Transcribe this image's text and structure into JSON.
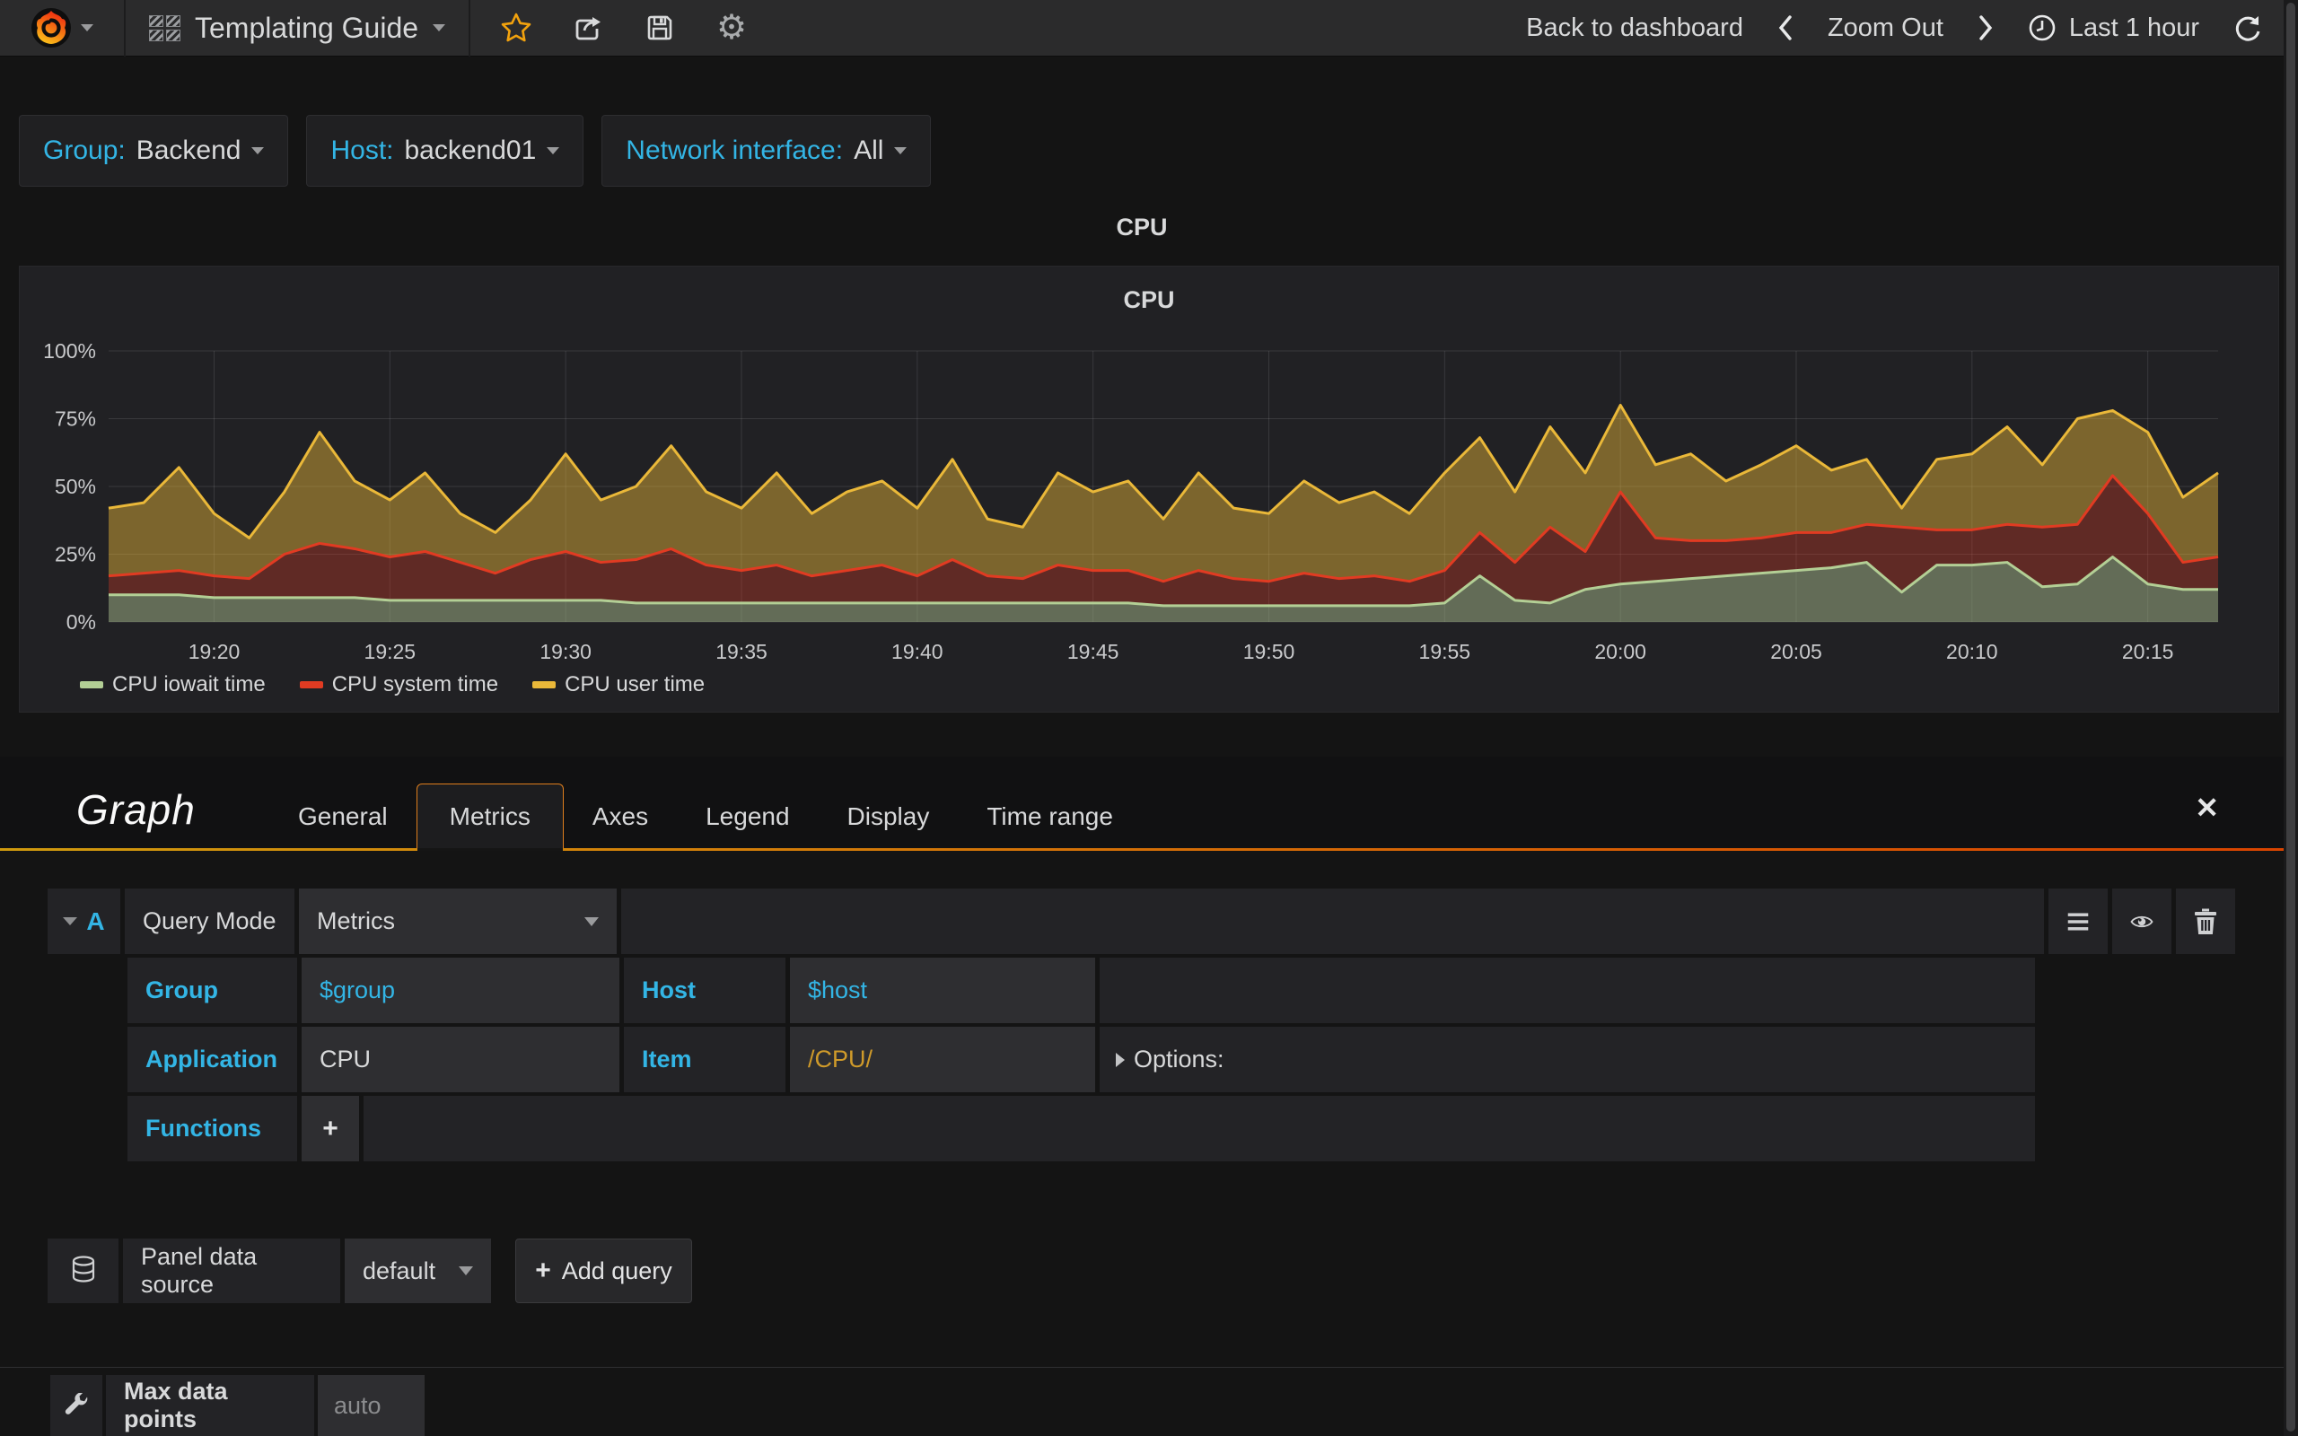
{
  "navbar": {
    "title": "Templating Guide",
    "back_label": "Back to dashboard",
    "zoom_out_label": "Zoom Out",
    "time_range_label": "Last 1 hour"
  },
  "icons": {
    "close": "✕",
    "plus": "+",
    "gear": "⚙"
  },
  "colors": {
    "accent_cyan": "#33b5e5",
    "star_orange": "#f2a20d",
    "tab_border_orange": "#de7e1d",
    "gradient_start": "#cf9a0e",
    "gradient_end": "#d94400"
  },
  "variables": {
    "group_label": "Group:",
    "group_value": "Backend",
    "host_label": "Host:",
    "host_value": "backend01",
    "net_label": "Network interface:",
    "net_value": "All"
  },
  "panel": {
    "header_title": "CPU"
  },
  "chart_data": {
    "type": "area",
    "title": "CPU",
    "stacked": true,
    "unit": "percent",
    "ylim": [
      0,
      100
    ],
    "grid": true,
    "legend_position": "bottom-left",
    "x_start": "19:17",
    "x_end": "20:17",
    "x_step_minutes": 1,
    "x_ticks": [
      "19:20",
      "19:25",
      "19:30",
      "19:35",
      "19:40",
      "19:45",
      "19:50",
      "19:55",
      "20:00",
      "20:05",
      "20:10",
      "20:15"
    ],
    "x_tick_minutes": [
      3,
      8,
      13,
      18,
      23,
      28,
      33,
      38,
      43,
      48,
      53,
      58
    ],
    "y_ticks": [
      "0%",
      "25%",
      "50%",
      "75%",
      "100%"
    ],
    "y_tick_values": [
      0,
      25,
      50,
      75,
      100
    ],
    "series": [
      {
        "name": "CPU iowait time",
        "color": "#b3cf95",
        "fill": "rgba(154,172,130,0.55)",
        "values": [
          10,
          10,
          10,
          9,
          9,
          9,
          9,
          9,
          8,
          8,
          8,
          8,
          8,
          8,
          8,
          7,
          7,
          7,
          7,
          7,
          7,
          7,
          7,
          7,
          7,
          7,
          7,
          7,
          7,
          7,
          6,
          6,
          6,
          6,
          6,
          6,
          6,
          6,
          7,
          17,
          8,
          7,
          12,
          14,
          15,
          16,
          17,
          18,
          19,
          20,
          22,
          11,
          21,
          21,
          22,
          13,
          14,
          24,
          14,
          12,
          12
        ]
      },
      {
        "name": "CPU system time",
        "color": "#e13b22",
        "fill": "rgba(224,60,40,0.33)",
        "values": [
          7,
          8,
          9,
          8,
          7,
          16,
          20,
          18,
          16,
          18,
          14,
          10,
          15,
          18,
          14,
          16,
          20,
          14,
          12,
          14,
          10,
          12,
          14,
          10,
          16,
          10,
          9,
          14,
          12,
          12,
          9,
          13,
          10,
          9,
          12,
          10,
          11,
          9,
          12,
          16,
          14,
          28,
          14,
          34,
          16,
          14,
          13,
          13,
          14,
          13,
          14,
          24,
          13,
          13,
          14,
          22,
          22,
          30,
          26,
          10,
          12
        ]
      },
      {
        "name": "CPU user time",
        "color": "#eab839",
        "fill": "rgba(234,184,57,0.45)",
        "values": [
          25,
          26,
          38,
          23,
          15,
          23,
          41,
          25,
          21,
          29,
          18,
          15,
          22,
          36,
          23,
          27,
          38,
          27,
          23,
          34,
          23,
          29,
          31,
          25,
          37,
          21,
          19,
          34,
          29,
          33,
          23,
          36,
          26,
          25,
          34,
          28,
          31,
          25,
          36,
          35,
          26,
          37,
          29,
          32,
          27,
          32,
          22,
          27,
          32,
          23,
          24,
          7,
          26,
          28,
          36,
          23,
          39,
          24,
          30,
          24,
          31
        ]
      }
    ]
  },
  "editor": {
    "panel_type_label": "Graph",
    "tabs": [
      "General",
      "Metrics",
      "Axes",
      "Legend",
      "Display",
      "Time range"
    ],
    "active_tab": "Metrics",
    "query": {
      "ref": "A",
      "mode_label": "Query Mode",
      "mode_value": "Metrics",
      "group_label": "Group",
      "group_value": "$group",
      "host_label": "Host",
      "host_value": "$host",
      "app_label": "Application",
      "app_value": "CPU",
      "item_label": "Item",
      "item_value": "/CPU/",
      "options_label": "Options:",
      "functions_label": "Functions",
      "add_function_label": "+"
    },
    "datasource": {
      "label": "Panel data source",
      "value": "default",
      "add_query_label": "Add query"
    },
    "max_data_points": {
      "label": "Max data points",
      "placeholder": "auto"
    }
  }
}
